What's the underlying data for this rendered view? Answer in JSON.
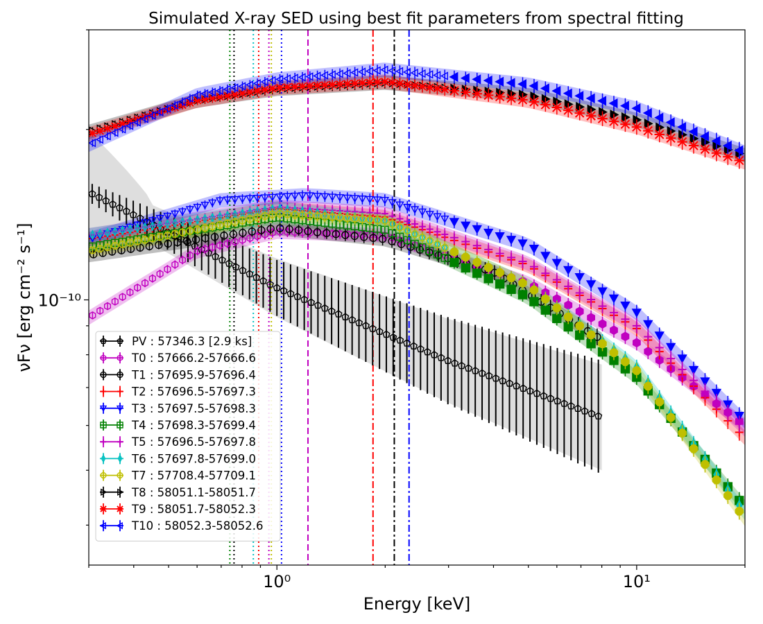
{
  "chart_data": {
    "type": "scatter",
    "title": "Simulated X-ray SED using best fit parameters from spectral fitting",
    "xlabel": "Energy [keV]",
    "ylabel": "νFν [erg cm⁻² s⁻¹]",
    "xscale": "log",
    "yscale": "log",
    "xlim": [
      0.3,
      20
    ],
    "ylim": [
      3.4e-11,
      3e-10
    ],
    "x_ticks": [
      {
        "value": 1,
        "label": "10⁰"
      },
      {
        "value": 10,
        "label": "10¹"
      }
    ],
    "y_ticks": [
      {
        "value": 1e-10,
        "label": "10⁻¹⁰"
      }
    ],
    "legend": "lower-left",
    "series": [
      {
        "name": "PV : 57346.3 [2.9 ks]",
        "color": "#000000",
        "marker": "pentagon",
        "x_range": [
          0.3,
          8.0
        ],
        "anchors": [
          [
            0.3,
            1.55e-10
          ],
          [
            1.0,
            1.05e-10
          ],
          [
            3.0,
            7.8e-11
          ],
          [
            8.0,
            6.2e-11
          ]
        ]
      },
      {
        "name": "T0 : 57666.2-57666.6",
        "color": "#c000c0",
        "marker": "hexagon",
        "x_range": [
          0.3,
          20
        ],
        "anchors": [
          [
            0.3,
            9.3e-11
          ],
          [
            0.6,
            1.22e-10
          ],
          [
            1.0,
            1.32e-10
          ],
          [
            2.0,
            1.3e-10
          ],
          [
            5.0,
            1.07e-10
          ],
          [
            10,
            8.4e-11
          ],
          [
            20,
            6e-11
          ]
        ]
      },
      {
        "name": "T1 : 57695.9-57696.4",
        "color": "#000000",
        "marker": "circle",
        "x_range": [
          0.3,
          8.0
        ],
        "anchors": [
          [
            0.3,
            1.2e-10
          ],
          [
            1.0,
            1.34e-10
          ],
          [
            2.0,
            1.28e-10
          ],
          [
            4.0,
            1.12e-10
          ],
          [
            8.0,
            8.5e-11
          ]
        ]
      },
      {
        "name": "T2 : 57696.5-57697.3",
        "color": "#ff0000",
        "marker": "plus",
        "x_range": [
          0.3,
          20
        ],
        "anchors": [
          [
            0.3,
            1.28e-10
          ],
          [
            1.0,
            1.45e-10
          ],
          [
            2.0,
            1.4e-10
          ],
          [
            5.0,
            1.15e-10
          ],
          [
            10,
            8.9e-11
          ],
          [
            20,
            5.7e-11
          ]
        ]
      },
      {
        "name": "T3 : 57697.5-57698.3",
        "color": "#0000ff",
        "marker": "triangle-down",
        "x_range": [
          0.3,
          20
        ],
        "anchors": [
          [
            0.3,
            1.28e-10
          ],
          [
            0.7,
            1.5e-10
          ],
          [
            1.2,
            1.53e-10
          ],
          [
            2.0,
            1.5e-10
          ],
          [
            5.0,
            1.25e-10
          ],
          [
            10,
            9.5e-11
          ],
          [
            20,
            6.1e-11
          ]
        ]
      },
      {
        "name": "T4 : 57698.3-57699.4",
        "color": "#008000",
        "marker": "square",
        "x_range": [
          0.3,
          20
        ],
        "anchors": [
          [
            0.3,
            1.24e-10
          ],
          [
            1.0,
            1.4e-10
          ],
          [
            2.0,
            1.33e-10
          ],
          [
            5.0,
            1.01e-10
          ],
          [
            10,
            7.3e-11
          ],
          [
            20,
            4.3e-11
          ]
        ]
      },
      {
        "name": "T5 : 57696.5-57697.8",
        "color": "#c000c0",
        "marker": "plus",
        "x_range": [
          0.3,
          20
        ],
        "anchors": [
          [
            0.3,
            1.3e-10
          ],
          [
            1.0,
            1.46e-10
          ],
          [
            2.0,
            1.42e-10
          ],
          [
            5.0,
            1.16e-10
          ],
          [
            10,
            9e-11
          ],
          [
            20,
            5.9e-11
          ]
        ]
      },
      {
        "name": "T6 : 57697.8-57699.0",
        "color": "#00c0c0",
        "marker": "diamond-thin",
        "x_range": [
          0.3,
          20
        ],
        "anchors": [
          [
            0.3,
            1.3e-10
          ],
          [
            1.0,
            1.45e-10
          ],
          [
            2.0,
            1.38e-10
          ],
          [
            5.0,
            1.06e-10
          ],
          [
            10,
            7.6e-11
          ],
          [
            20,
            4.2e-11
          ]
        ]
      },
      {
        "name": "T7 : 57708.4-57709.1",
        "color": "#bfbf00",
        "marker": "octagon",
        "x_range": [
          0.3,
          20
        ],
        "anchors": [
          [
            0.3,
            1.22e-10
          ],
          [
            1.0,
            1.42e-10
          ],
          [
            2.0,
            1.38e-10
          ],
          [
            5.0,
            1.06e-10
          ],
          [
            10,
            7.5e-11
          ],
          [
            20,
            4.1e-11
          ]
        ]
      },
      {
        "name": "T8 : 58051.1-58051.7",
        "color": "#000000",
        "marker": "triangle-right",
        "x_range": [
          0.3,
          20
        ],
        "anchors": [
          [
            0.3,
            1.98e-10
          ],
          [
            0.6,
            2.25e-10
          ],
          [
            1.0,
            2.36e-10
          ],
          [
            2.0,
            2.42e-10
          ],
          [
            5.0,
            2.3e-10
          ],
          [
            10,
            2.08e-10
          ],
          [
            20,
            1.8e-10
          ]
        ]
      },
      {
        "name": "T9 : 58051.7-58052.3",
        "color": "#ff0000",
        "marker": "x",
        "x_range": [
          0.3,
          20
        ],
        "anchors": [
          [
            0.3,
            1.96e-10
          ],
          [
            0.6,
            2.25e-10
          ],
          [
            1.0,
            2.37e-10
          ],
          [
            2.0,
            2.43e-10
          ],
          [
            5.0,
            2.25e-10
          ],
          [
            10,
            2.02e-10
          ],
          [
            20,
            1.75e-10
          ]
        ]
      },
      {
        "name": "T10 : 58052.3-58052.6",
        "color": "#0000ff",
        "marker": "triangle-left",
        "x_range": [
          0.3,
          20
        ],
        "anchors": [
          [
            0.3,
            1.88e-10
          ],
          [
            0.6,
            2.3e-10
          ],
          [
            1.0,
            2.45e-10
          ],
          [
            2.0,
            2.55e-10
          ],
          [
            5.0,
            2.4e-10
          ],
          [
            10,
            2.18e-10
          ],
          [
            20,
            1.82e-10
          ]
        ]
      }
    ],
    "vertical_lines": [
      {
        "x": 0.74,
        "color": "#008000",
        "style": "dotted"
      },
      {
        "x": 0.76,
        "color": "#000000",
        "style": "dotted"
      },
      {
        "x": 0.86,
        "color": "#00c0c0",
        "style": "dotted"
      },
      {
        "x": 0.89,
        "color": "#ff0000",
        "style": "dotted"
      },
      {
        "x": 0.95,
        "color": "#c000c0",
        "style": "dotted"
      },
      {
        "x": 0.965,
        "color": "#bfbf00",
        "style": "dotted"
      },
      {
        "x": 1.03,
        "color": "#0000ff",
        "style": "dotted"
      },
      {
        "x": 1.22,
        "color": "#c000c0",
        "style": "dashed"
      },
      {
        "x": 1.85,
        "color": "#ff0000",
        "style": "dashdot"
      },
      {
        "x": 2.12,
        "color": "#000000",
        "style": "dashdot"
      },
      {
        "x": 2.33,
        "color": "#0000ff",
        "style": "dashdot"
      }
    ]
  }
}
